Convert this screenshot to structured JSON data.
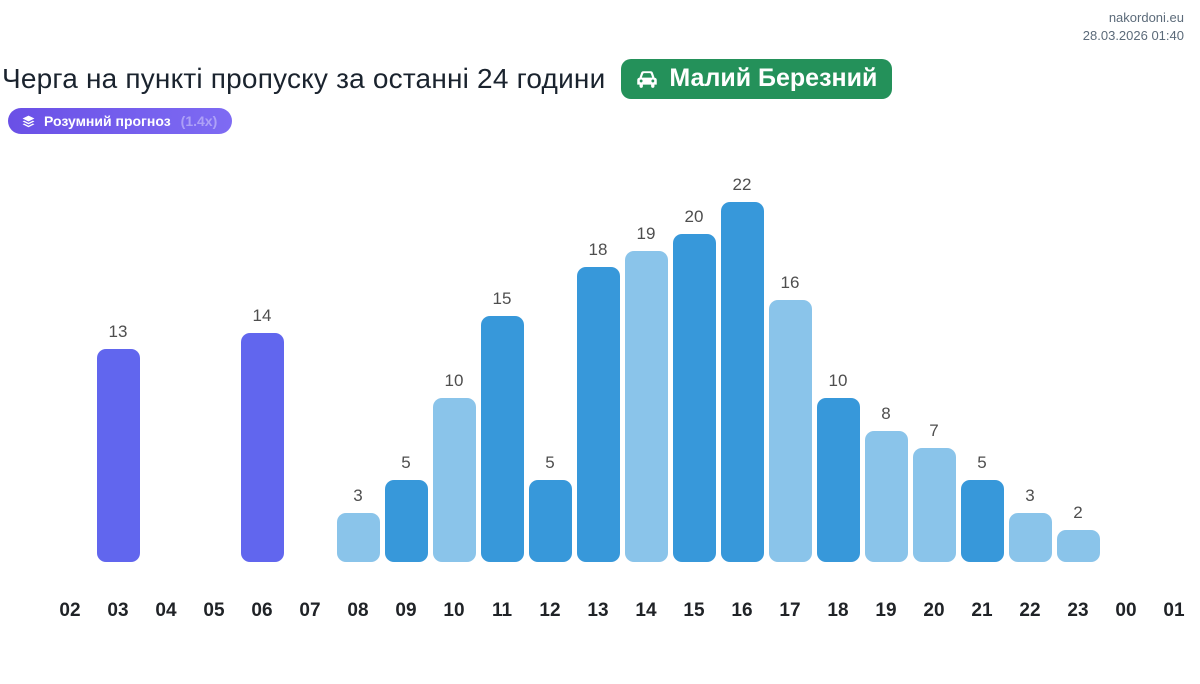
{
  "header": {
    "site": "nakordoni.eu",
    "datetime": "28.03.2026 01:40"
  },
  "title": "Черга на пункті пропуску за останні 24 години",
  "checkpoint_badge": {
    "label": "Малий Березний",
    "icon": "car-icon",
    "color": "#24915a"
  },
  "forecast_badge": {
    "label": "Розумний прогноз",
    "multiplier": "(1.4x)",
    "icon": "layers-icon",
    "color_start": "#6a50e6",
    "color_end": "#7e6bf3"
  },
  "chart_data": {
    "type": "bar",
    "title": "Черга на пункті пропуску за останні 24 години",
    "xlabel": "година",
    "ylabel": "",
    "ylim": [
      0,
      24
    ],
    "grid": false,
    "legend": "none",
    "value_labels": true,
    "categories": [
      "02",
      "03",
      "04",
      "05",
      "06",
      "07",
      "08",
      "09",
      "10",
      "11",
      "12",
      "13",
      "14",
      "15",
      "16",
      "17",
      "18",
      "19",
      "20",
      "21",
      "22",
      "23",
      "00",
      "01"
    ],
    "values": [
      null,
      13,
      null,
      null,
      14,
      null,
      3,
      5,
      10,
      15,
      5,
      18,
      19,
      20,
      22,
      16,
      10,
      8,
      7,
      5,
      3,
      2,
      null,
      null
    ],
    "color_key": [
      null,
      "forecast",
      null,
      null,
      "forecast",
      null,
      "light",
      "dark",
      "light",
      "dark",
      "dark",
      "dark",
      "light",
      "dark",
      "dark",
      "light",
      "dark",
      "light",
      "light",
      "dark",
      "light",
      "light",
      null,
      null
    ],
    "colors": {
      "dark": "#3798da",
      "light": "#8ac4ea",
      "forecast": "#6166ee"
    }
  }
}
